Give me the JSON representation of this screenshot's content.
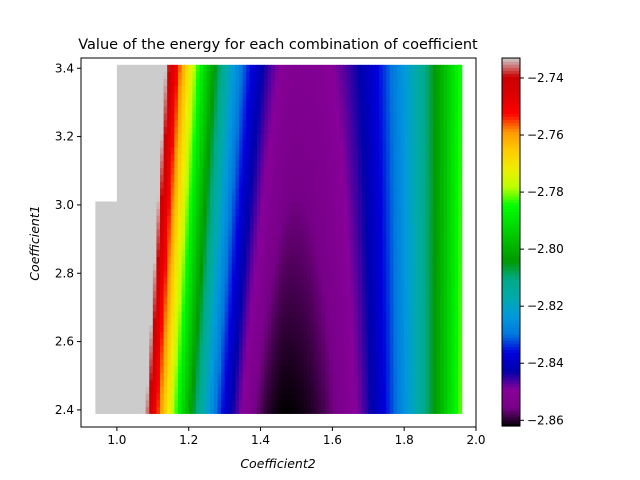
{
  "chart_data": {
    "type": "heatmap",
    "title": "Value of the energy for each combination of coefficient",
    "xlabel": "Coefficient2",
    "ylabel": "Coefficient1",
    "xlim": [
      0.9,
      2.0
    ],
    "ylim": [
      2.35,
      3.43
    ],
    "x_ticks": [
      "1.0",
      "1.2",
      "1.4",
      "1.6",
      "1.8",
      "2.0"
    ],
    "y_ticks": [
      "2.4",
      "2.6",
      "2.8",
      "3.0",
      "3.2",
      "3.4"
    ],
    "colormap": "nipy_spectral_r",
    "colorbar": {
      "vmin": -2.862,
      "vmax": -2.733,
      "ticks": [
        "-2.74",
        "-2.76",
        "-2.78",
        "-2.80",
        "-2.82",
        "-2.84",
        "-2.86"
      ]
    },
    "data_region": {
      "x_range": [
        0.94,
        1.96
      ],
      "y_range": [
        2.39,
        3.41
      ],
      "notch": {
        "x_max": 1.0,
        "y_min": 3.01
      }
    },
    "energy_model": {
      "min_x_at_y_low": 1.47,
      "min_x_at_y_high": 1.51,
      "min_value": -2.862,
      "left_curvature": 0.85,
      "right_curvature": 0.34,
      "y_curvature": 0.01
    }
  }
}
